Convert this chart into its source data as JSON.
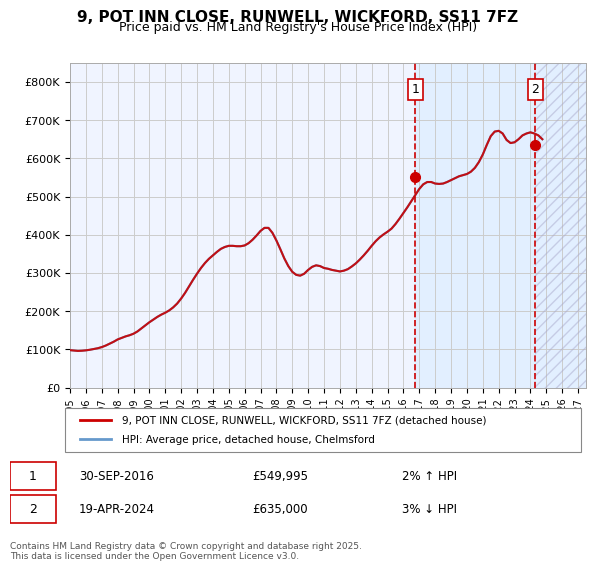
{
  "title": "9, POT INN CLOSE, RUNWELL, WICKFORD, SS11 7FZ",
  "subtitle": "Price paid vs. HM Land Registry's House Price Index (HPI)",
  "ylabel_ticks": [
    "£0",
    "£100K",
    "£200K",
    "£300K",
    "£400K",
    "£500K",
    "£600K",
    "£700K",
    "£800K"
  ],
  "ytick_values": [
    0,
    100000,
    200000,
    300000,
    400000,
    500000,
    600000,
    700000,
    800000
  ],
  "ylim": [
    0,
    850000
  ],
  "xlim_start": 1995.0,
  "xlim_end": 2027.5,
  "xticks": [
    1995,
    1996,
    1997,
    1998,
    1999,
    2000,
    2001,
    2002,
    2003,
    2004,
    2005,
    2006,
    2007,
    2008,
    2009,
    2010,
    2011,
    2012,
    2013,
    2014,
    2015,
    2016,
    2017,
    2018,
    2019,
    2020,
    2021,
    2022,
    2023,
    2024,
    2025,
    2026,
    2027
  ],
  "transaction1_x": 2016.75,
  "transaction1_y": 549995,
  "transaction1_label": "1",
  "transaction1_date": "30-SEP-2016",
  "transaction1_price": "£549,995",
  "transaction1_hpi": "2% ↑ HPI",
  "transaction2_x": 2024.3,
  "transaction2_y": 635000,
  "transaction2_label": "2",
  "transaction2_date": "19-APR-2024",
  "transaction2_price": "£635,000",
  "transaction2_hpi": "3% ↓ HPI",
  "line1_color": "#cc0000",
  "line2_color": "#6699cc",
  "bg_color": "#ffffff",
  "plot_bg_color": "#f0f4ff",
  "grid_color": "#cccccc",
  "legend1_label": "9, POT INN CLOSE, RUNWELL, WICKFORD, SS11 7FZ (detached house)",
  "legend2_label": "HPI: Average price, detached house, Chelmsford",
  "footnote": "Contains HM Land Registry data © Crown copyright and database right 2025.\nThis data is licensed under the Open Government Licence v3.0.",
  "hpi_data_years": [
    1995.0,
    1995.25,
    1995.5,
    1995.75,
    1996.0,
    1996.25,
    1996.5,
    1996.75,
    1997.0,
    1997.25,
    1997.5,
    1997.75,
    1998.0,
    1998.25,
    1998.5,
    1998.75,
    1999.0,
    1999.25,
    1999.5,
    1999.75,
    2000.0,
    2000.25,
    2000.5,
    2000.75,
    2001.0,
    2001.25,
    2001.5,
    2001.75,
    2002.0,
    2002.25,
    2002.5,
    2002.75,
    2003.0,
    2003.25,
    2003.5,
    2003.75,
    2004.0,
    2004.25,
    2004.5,
    2004.75,
    2005.0,
    2005.25,
    2005.5,
    2005.75,
    2006.0,
    2006.25,
    2006.5,
    2006.75,
    2007.0,
    2007.25,
    2007.5,
    2007.75,
    2008.0,
    2008.25,
    2008.5,
    2008.75,
    2009.0,
    2009.25,
    2009.5,
    2009.75,
    2010.0,
    2010.25,
    2010.5,
    2010.75,
    2011.0,
    2011.25,
    2011.5,
    2011.75,
    2012.0,
    2012.25,
    2012.5,
    2012.75,
    2013.0,
    2013.25,
    2013.5,
    2013.75,
    2014.0,
    2014.25,
    2014.5,
    2014.75,
    2015.0,
    2015.25,
    2015.5,
    2015.75,
    2016.0,
    2016.25,
    2016.5,
    2016.75,
    2017.0,
    2017.25,
    2017.5,
    2017.75,
    2018.0,
    2018.25,
    2018.5,
    2018.75,
    2019.0,
    2019.25,
    2019.5,
    2019.75,
    2020.0,
    2020.25,
    2020.5,
    2020.75,
    2021.0,
    2021.25,
    2021.5,
    2021.75,
    2022.0,
    2022.25,
    2022.5,
    2022.75,
    2023.0,
    2023.25,
    2023.5,
    2023.75,
    2024.0,
    2024.25,
    2024.5,
    2024.75
  ],
  "hpi_data_values": [
    98000,
    97000,
    96000,
    96500,
    97500,
    99000,
    101000,
    103000,
    106000,
    110000,
    115000,
    120000,
    126000,
    130000,
    134000,
    137000,
    141000,
    147000,
    155000,
    163000,
    171000,
    178000,
    185000,
    191000,
    196000,
    202000,
    210000,
    220000,
    233000,
    248000,
    265000,
    282000,
    298000,
    313000,
    326000,
    337000,
    346000,
    355000,
    363000,
    368000,
    371000,
    371000,
    370000,
    370000,
    372000,
    378000,
    387000,
    398000,
    410000,
    418000,
    418000,
    405000,
    385000,
    362000,
    338000,
    318000,
    303000,
    295000,
    293000,
    298000,
    308000,
    316000,
    320000,
    318000,
    313000,
    311000,
    308000,
    306000,
    304000,
    306000,
    310000,
    317000,
    325000,
    335000,
    346000,
    358000,
    371000,
    383000,
    393000,
    401000,
    408000,
    416000,
    428000,
    442000,
    457000,
    472000,
    488000,
    504000,
    520000,
    532000,
    538000,
    538000,
    534000,
    533000,
    534000,
    538000,
    543000,
    548000,
    553000,
    556000,
    559000,
    565000,
    575000,
    590000,
    610000,
    635000,
    658000,
    670000,
    672000,
    665000,
    648000,
    640000,
    642000,
    650000,
    660000,
    665000,
    668000,
    665000,
    660000,
    650000
  ],
  "shade_start": 2016.75,
  "shade_end": 2027.5,
  "hatch_start": 2024.3,
  "hatch_end": 2027.5
}
